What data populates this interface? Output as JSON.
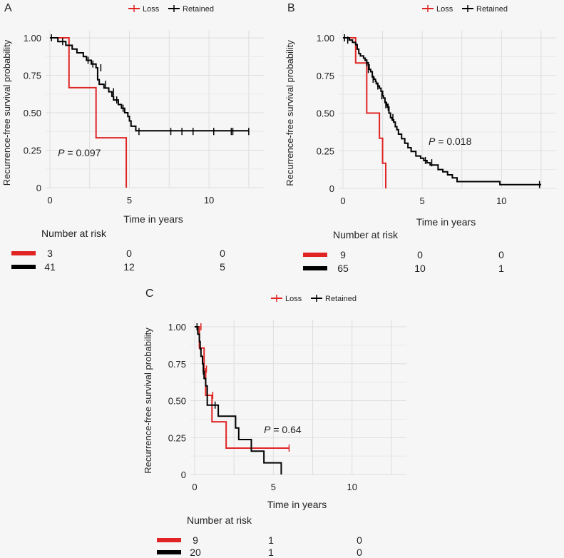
{
  "legend": {
    "loss": "Loss",
    "retained": "Retained"
  },
  "colors": {
    "loss": "#e02424",
    "retained": "#000000",
    "grid": "#dddddd",
    "bg": "#f6f6f6"
  },
  "risk_title": "Number at risk",
  "chart_data": [
    {
      "id": "A",
      "type": "line",
      "panel_label": "A",
      "xlabel": "Time in years",
      "ylabel": "Recurrence-free survival probability",
      "xlim": [
        0,
        13
      ],
      "ylim": [
        0,
        1
      ],
      "xticks": [
        0,
        5,
        10
      ],
      "xtick_labels": [
        "0",
        "5",
        "10"
      ],
      "yticks": [
        0,
        0.25,
        0.5,
        0.75,
        1.0
      ],
      "ytick_labels": [
        "0",
        "0.25",
        "0.50",
        "0.75",
        "1.00"
      ],
      "p_label": "P",
      "p_value": " = 0.097",
      "p_pos": [
        0.5,
        0.21
      ],
      "series": [
        {
          "name": "Loss",
          "color": "#e02424",
          "steps": [
            [
              0,
              1
            ],
            [
              1.2,
              0.667
            ],
            [
              2.9,
              0.333
            ],
            [
              4.8,
              0
            ]
          ],
          "end": 4.8,
          "censors": []
        },
        {
          "name": "Retained",
          "color": "#000000",
          "steps": [
            [
              0,
              1
            ],
            [
              0.5,
              0.975
            ],
            [
              1.0,
              0.95
            ],
            [
              1.4,
              0.925
            ],
            [
              1.7,
              0.9
            ],
            [
              2.1,
              0.875
            ],
            [
              2.3,
              0.85
            ],
            [
              2.6,
              0.825
            ],
            [
              2.9,
              0.8
            ],
            [
              3.0,
              0.72
            ],
            [
              3.1,
              0.69
            ],
            [
              3.4,
              0.665
            ],
            [
              3.7,
              0.64
            ],
            [
              3.9,
              0.61
            ],
            [
              4.0,
              0.585
            ],
            [
              4.3,
              0.555
            ],
            [
              4.5,
              0.53
            ],
            [
              4.7,
              0.5
            ],
            [
              4.9,
              0.475
            ],
            [
              5.0,
              0.445
            ],
            [
              5.1,
              0.41
            ],
            [
              5.4,
              0.38
            ]
          ],
          "end": 12.5,
          "censors": [
            [
              0.1,
              1
            ],
            [
              0.8,
              0.975
            ],
            [
              2.4,
              0.85
            ],
            [
              2.7,
              0.825
            ],
            [
              3.2,
              0.8
            ],
            [
              3.5,
              0.69
            ],
            [
              4.0,
              0.64
            ],
            [
              4.2,
              0.585
            ],
            [
              4.6,
              0.53
            ],
            [
              5.6,
              0.375
            ],
            [
              7.6,
              0.375
            ],
            [
              8.3,
              0.375
            ],
            [
              9.0,
              0.375
            ],
            [
              10.3,
              0.375
            ],
            [
              11.4,
              0.375
            ],
            [
              11.5,
              0.375
            ],
            [
              12.5,
              0.375
            ]
          ]
        }
      ],
      "risk_loss": [
        "3",
        "0",
        "0"
      ],
      "risk_retained": [
        "41",
        "12",
        "5"
      ]
    },
    {
      "id": "B",
      "type": "line",
      "panel_label": "B",
      "xlabel": "Time in years",
      "ylabel": "Recurrence-free survival probability",
      "xlim": [
        0,
        13
      ],
      "ylim": [
        0,
        1
      ],
      "xticks": [
        0,
        5,
        10
      ],
      "xtick_labels": [
        "0",
        "5",
        "10"
      ],
      "yticks": [
        0,
        0.25,
        0.5,
        0.75,
        1.0
      ],
      "ytick_labels": [
        "0",
        "0.25",
        "0.50",
        "0.75",
        "1.00"
      ],
      "p_label": "P",
      "p_value": " = 0.018",
      "p_pos": [
        5.4,
        0.29
      ],
      "series": [
        {
          "name": "Loss",
          "color": "#e02424",
          "steps": [
            [
              0,
              1
            ],
            [
              0.8,
              0.833
            ],
            [
              1.5,
              0.5
            ],
            [
              2.3,
              0.333
            ],
            [
              2.5,
              0.167
            ],
            [
              2.7,
              0
            ]
          ],
          "end": 2.7,
          "censors": []
        },
        {
          "name": "Retained",
          "color": "#000000",
          "steps": [
            [
              0,
              1
            ],
            [
              0.4,
              0.985
            ],
            [
              0.6,
              0.97
            ],
            [
              0.8,
              0.955
            ],
            [
              0.9,
              0.925
            ],
            [
              1.0,
              0.895
            ],
            [
              1.1,
              0.88
            ],
            [
              1.3,
              0.865
            ],
            [
              1.4,
              0.85
            ],
            [
              1.5,
              0.835
            ],
            [
              1.6,
              0.82
            ],
            [
              1.65,
              0.79
            ],
            [
              1.75,
              0.775
            ],
            [
              1.85,
              0.74
            ],
            [
              1.95,
              0.725
            ],
            [
              2.05,
              0.71
            ],
            [
              2.1,
              0.695
            ],
            [
              2.2,
              0.68
            ],
            [
              2.3,
              0.665
            ],
            [
              2.4,
              0.645
            ],
            [
              2.5,
              0.615
            ],
            [
              2.55,
              0.6
            ],
            [
              2.65,
              0.57
            ],
            [
              2.75,
              0.555
            ],
            [
              2.8,
              0.54
            ],
            [
              2.9,
              0.5
            ],
            [
              3.0,
              0.47
            ],
            [
              3.1,
              0.455
            ],
            [
              3.2,
              0.44
            ],
            [
              3.3,
              0.41
            ],
            [
              3.4,
              0.39
            ],
            [
              3.5,
              0.36
            ],
            [
              3.7,
              0.33
            ],
            [
              3.9,
              0.3
            ],
            [
              4.1,
              0.27
            ],
            [
              4.3,
              0.245
            ],
            [
              4.6,
              0.215
            ],
            [
              4.9,
              0.2
            ],
            [
              5.1,
              0.185
            ],
            [
              5.3,
              0.17
            ],
            [
              5.5,
              0.155
            ],
            [
              6.0,
              0.125
            ],
            [
              6.3,
              0.11
            ],
            [
              6.6,
              0.09
            ],
            [
              6.9,
              0.07
            ],
            [
              7.2,
              0.045
            ],
            [
              9.9,
              0.025
            ]
          ],
          "end": 12.5,
          "censors": [
            [
              0.1,
              1
            ],
            [
              0.3,
              0.985
            ],
            [
              1.5,
              0.835
            ],
            [
              1.6,
              0.79
            ],
            [
              1.9,
              0.725
            ],
            [
              2.2,
              0.68
            ],
            [
              2.45,
              0.615
            ],
            [
              2.7,
              0.555
            ],
            [
              2.85,
              0.54
            ],
            [
              3.15,
              0.47
            ],
            [
              5.2,
              0.185
            ],
            [
              5.6,
              0.17
            ],
            [
              12.4,
              0.025
            ]
          ]
        }
      ],
      "risk_loss": [
        "9",
        "0",
        "0"
      ],
      "risk_retained": [
        "65",
        "10",
        "1"
      ]
    },
    {
      "id": "C",
      "type": "line",
      "panel_label": "C",
      "xlabel": "Time in years",
      "ylabel": "Recurrence-free survival probability",
      "xlim": [
        0,
        13
      ],
      "ylim": [
        0,
        1
      ],
      "xticks": [
        0,
        5,
        10
      ],
      "xtick_labels": [
        "0",
        "5",
        "10"
      ],
      "yticks": [
        0,
        0.25,
        0.5,
        0.75,
        1.0
      ],
      "ytick_labels": [
        "0",
        "0.25",
        "0.50",
        "0.75",
        "1.00"
      ],
      "p_label": "P",
      "p_value": " = 0.64",
      "p_pos": [
        4.4,
        0.28
      ],
      "series": [
        {
          "name": "Loss",
          "color": "#e02424",
          "steps": [
            [
              0,
              1
            ],
            [
              0.3,
              0.857
            ],
            [
              0.6,
              0.714
            ],
            [
              0.7,
              0.536
            ],
            [
              1.1,
              0.357
            ],
            [
              2.0,
              0.179
            ]
          ],
          "end": 6.0,
          "censors": [
            [
              0.4,
              1
            ],
            [
              0.75,
              0.714
            ],
            [
              1.15,
              0.536
            ],
            [
              6.0,
              0.179
            ]
          ]
        },
        {
          "name": "Retained",
          "color": "#000000",
          "steps": [
            [
              0,
              1
            ],
            [
              0.2,
              0.95
            ],
            [
              0.3,
              0.9
            ],
            [
              0.35,
              0.85
            ],
            [
              0.4,
              0.8
            ],
            [
              0.5,
              0.75
            ],
            [
              0.55,
              0.7
            ],
            [
              0.6,
              0.65
            ],
            [
              0.7,
              0.6
            ],
            [
              0.8,
              0.47
            ],
            [
              1.5,
              0.395
            ],
            [
              2.6,
              0.315
            ],
            [
              2.8,
              0.237
            ],
            [
              3.6,
              0.158
            ],
            [
              4.4,
              0.079
            ],
            [
              5.5,
              0
            ]
          ],
          "end": 5.5,
          "censors": [
            [
              0.15,
              1
            ],
            [
              0.55,
              0.7
            ],
            [
              1.3,
              0.47
            ]
          ]
        }
      ],
      "risk_loss": [
        "9",
        "1",
        "0"
      ],
      "risk_retained": [
        "20",
        "1",
        "0"
      ]
    }
  ]
}
